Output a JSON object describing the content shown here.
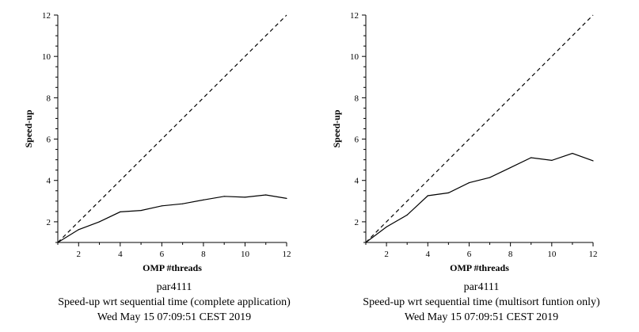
{
  "chart_data": [
    {
      "type": "line",
      "title": "par4111",
      "subtitle": "Speed-up wrt sequential time (complete application)",
      "timestamp": "Wed May 15 07:09:51 CEST 2019",
      "xlabel": "OMP #threads",
      "ylabel": "Speed-up",
      "xlim": [
        1,
        12
      ],
      "ylim": [
        1,
        12
      ],
      "xticks": [
        2,
        4,
        6,
        8,
        10,
        12
      ],
      "yticks": [
        2,
        4,
        6,
        8,
        10,
        12
      ],
      "grid": false,
      "series": [
        {
          "style": "solid",
          "x": [
            1,
            2,
            3,
            4,
            5,
            6,
            7,
            8,
            9,
            10,
            11,
            12
          ],
          "y": [
            1.0,
            1.62,
            2.0,
            2.48,
            2.55,
            2.77,
            2.87,
            3.06,
            3.23,
            3.19,
            3.3,
            3.13
          ]
        },
        {
          "style": "dashed",
          "x": [
            1,
            12
          ],
          "y": [
            1,
            12
          ]
        }
      ]
    },
    {
      "type": "line",
      "title": "par4111",
      "subtitle": "Speed-up wrt sequential time (multisort funtion only)",
      "timestamp": "Wed May 15 07:09:51 CEST 2019",
      "xlabel": "OMP #threads",
      "ylabel": "Speed-up",
      "xlim": [
        1,
        12
      ],
      "ylim": [
        1,
        12
      ],
      "xticks": [
        2,
        4,
        6,
        8,
        10,
        12
      ],
      "yticks": [
        2,
        4,
        6,
        8,
        10,
        12
      ],
      "grid": false,
      "series": [
        {
          "style": "solid",
          "x": [
            1,
            2,
            3,
            4,
            5,
            6,
            7,
            8,
            9,
            10,
            11,
            12
          ],
          "y": [
            1.0,
            1.75,
            2.33,
            3.26,
            3.4,
            3.89,
            4.14,
            4.62,
            5.1,
            4.97,
            5.31,
            4.95
          ]
        },
        {
          "style": "dashed",
          "x": [
            1,
            12
          ],
          "y": [
            1,
            12
          ]
        }
      ]
    }
  ]
}
